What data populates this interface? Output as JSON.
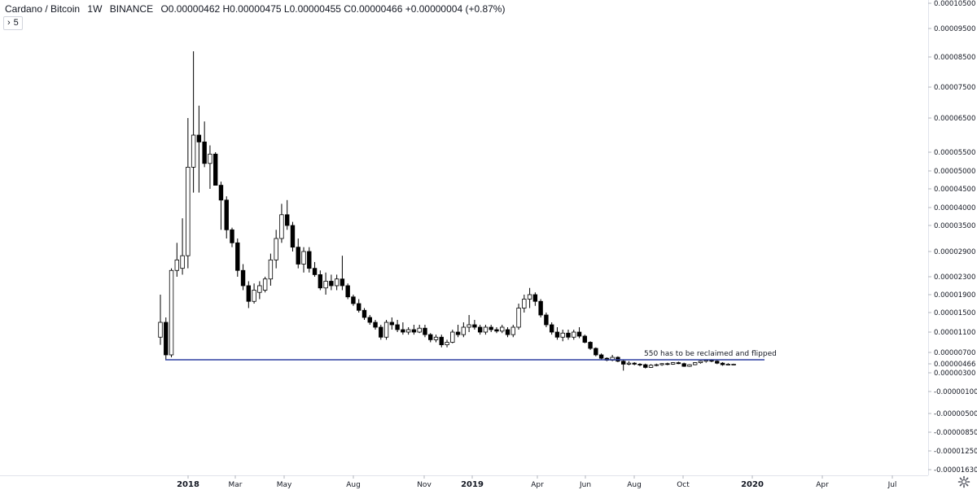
{
  "header": {
    "symbol": "Cardano / Bitcoin",
    "interval": "1W",
    "exchange": "BINANCE",
    "ohlc": "O0.00000462 H0.00000475 L0.00000455 C0.00000466 +0.00000004 (+0.87%)"
  },
  "collapse_button": {
    "icon": "chevron-right-icon",
    "label": "5"
  },
  "settings_icon": "gear-icon",
  "chart_data": {
    "type": "candlestick",
    "title": "",
    "price_scale": {
      "position": "right",
      "tick_labels": [
        "0.00010500",
        "0.00009500",
        "0.00008500",
        "0.00007500",
        "0.00006500",
        "0.00005500",
        "0.00005000",
        "0.00004500",
        "0.00004000",
        "0.00003500",
        "0.00002900",
        "0.00002300",
        "0.00001900",
        "0.00001500",
        "0.00001100",
        "0.00000700",
        "0.00000466",
        "0.00000300",
        "-0.00000100",
        "-0.00000500",
        "-0.00000850",
        "-0.00001250",
        "-0.00001630"
      ],
      "last_price": "0.00000466"
    },
    "time_scale": {
      "tick_labels": [
        "2018",
        "Mar",
        "May",
        "Aug",
        "Nov",
        "2019",
        "Apr",
        "Jun",
        "Aug",
        "Oct",
        "2020",
        "Apr",
        "Jul"
      ],
      "bold_labels": [
        "2018",
        "2019",
        "2020"
      ]
    },
    "annotation": {
      "text": "550 has to be reclaimed and flipped",
      "line_value": 5.5e-06,
      "color": "#2d3fa0"
    },
    "colors": {
      "up": "#ffffff",
      "down": "#000000",
      "wick": "#000000"
    },
    "candles": [
      {
        "o": 1e-05,
        "h": 1.9e-05,
        "l": 8.5e-06,
        "c": 1.3e-05
      },
      {
        "o": 1.3e-05,
        "h": 1.4e-05,
        "l": 5.5e-06,
        "c": 6.5e-06
      },
      {
        "o": 6.5e-06,
        "h": 2.5e-05,
        "l": 6e-06,
        "c": 2.45e-05
      },
      {
        "o": 2.45e-05,
        "h": 3.1e-05,
        "l": 2.3e-05,
        "c": 2.7e-05
      },
      {
        "o": 2.5e-05,
        "h": 3.7e-05,
        "l": 2.35e-05,
        "c": 2.8e-05
      },
      {
        "o": 2.8e-05,
        "h": 6.5e-05,
        "l": 2.5e-05,
        "c": 5.1e-05
      },
      {
        "o": 5.1e-05,
        "h": 8.7e-05,
        "l": 4.4e-05,
        "c": 6e-05
      },
      {
        "o": 6e-05,
        "h": 6.9e-05,
        "l": 4.4e-05,
        "c": 5.8e-05
      },
      {
        "o": 5.8e-05,
        "h": 6.4e-05,
        "l": 5.1e-05,
        "c": 5.2e-05
      },
      {
        "o": 5.2e-05,
        "h": 5.7e-05,
        "l": 4.5e-05,
        "c": 5.45e-05
      },
      {
        "o": 5.45e-05,
        "h": 5.5e-05,
        "l": 4.6e-05,
        "c": 4.6e-05
      },
      {
        "o": 4.6e-05,
        "h": 4.7e-05,
        "l": 3.4e-05,
        "c": 4.2e-05
      },
      {
        "o": 4.2e-05,
        "h": 4.3e-05,
        "l": 3.2e-05,
        "c": 3.4e-05
      },
      {
        "o": 3.4e-05,
        "h": 3.45e-05,
        "l": 3e-05,
        "c": 3.1e-05
      },
      {
        "o": 3.1e-05,
        "h": 3.2e-05,
        "l": 2.3e-05,
        "c": 2.45e-05
      },
      {
        "o": 2.45e-05,
        "h": 2.6e-05,
        "l": 2e-05,
        "c": 2.1e-05
      },
      {
        "o": 2.1e-05,
        "h": 2.2e-05,
        "l": 1.6e-05,
        "c": 1.75e-05
      },
      {
        "o": 1.75e-05,
        "h": 2.15e-05,
        "l": 1.7e-05,
        "c": 2e-05
      },
      {
        "o": 1.95e-05,
        "h": 2.2e-05,
        "l": 1.8e-05,
        "c": 2.1e-05
      },
      {
        "o": 2e-05,
        "h": 2.3e-05,
        "l": 1.95e-05,
        "c": 2.25e-05
      },
      {
        "o": 2.25e-05,
        "h": 2.85e-05,
        "l": 2.1e-05,
        "c": 2.7e-05
      },
      {
        "o": 2.7e-05,
        "h": 3.4e-05,
        "l": 2.5e-05,
        "c": 3.2e-05
      },
      {
        "o": 3.2e-05,
        "h": 4.1e-05,
        "l": 3.1e-05,
        "c": 3.8e-05
      },
      {
        "o": 3.8e-05,
        "h": 4.2e-05,
        "l": 3.4e-05,
        "c": 3.5e-05
      },
      {
        "o": 3.5e-05,
        "h": 3.6e-05,
        "l": 2.9e-05,
        "c": 3e-05
      },
      {
        "o": 3e-05,
        "h": 3.2e-05,
        "l": 2.5e-05,
        "c": 2.6e-05
      },
      {
        "o": 2.6e-05,
        "h": 3e-05,
        "l": 2.4e-05,
        "c": 2.9e-05
      },
      {
        "o": 2.9e-05,
        "h": 3e-05,
        "l": 2.4e-05,
        "c": 2.5e-05
      },
      {
        "o": 2.5e-05,
        "h": 2.65e-05,
        "l": 2.3e-05,
        "c": 2.35e-05
      },
      {
        "o": 2.35e-05,
        "h": 2.45e-05,
        "l": 2e-05,
        "c": 2.05e-05
      },
      {
        "o": 2.05e-05,
        "h": 2.4e-05,
        "l": 1.9e-05,
        "c": 2.2e-05
      },
      {
        "o": 2.2e-05,
        "h": 2.35e-05,
        "l": 2e-05,
        "c": 2.1e-05
      },
      {
        "o": 2.1e-05,
        "h": 2.35e-05,
        "l": 2e-05,
        "c": 2.25e-05
      },
      {
        "o": 2.25e-05,
        "h": 2.8e-05,
        "l": 2e-05,
        "c": 2.1e-05
      },
      {
        "o": 2.1e-05,
        "h": 2.15e-05,
        "l": 1.8e-05,
        "c": 1.85e-05
      },
      {
        "o": 1.85e-05,
        "h": 1.9e-05,
        "l": 1.65e-05,
        "c": 1.7e-05
      },
      {
        "o": 1.7e-05,
        "h": 1.8e-05,
        "l": 1.5e-05,
        "c": 1.55e-05
      },
      {
        "o": 1.55e-05,
        "h": 1.6e-05,
        "l": 1.35e-05,
        "c": 1.4e-05
      },
      {
        "o": 1.4e-05,
        "h": 1.45e-05,
        "l": 1.25e-05,
        "c": 1.3e-05
      },
      {
        "o": 1.3e-05,
        "h": 1.35e-05,
        "l": 1.15e-05,
        "c": 1.2e-05
      },
      {
        "o": 1.2e-05,
        "h": 1.25e-05,
        "l": 9.5e-06,
        "c": 1e-05
      },
      {
        "o": 1e-05,
        "h": 1.35e-05,
        "l": 9.5e-06,
        "c": 1.3e-05
      },
      {
        "o": 1.3e-05,
        "h": 1.4e-05,
        "l": 1.15e-05,
        "c": 1.25e-05
      },
      {
        "o": 1.25e-05,
        "h": 1.35e-05,
        "l": 1.1e-05,
        "c": 1.15e-05
      },
      {
        "o": 1.15e-05,
        "h": 1.3e-05,
        "l": 1.05e-05,
        "c": 1.1e-05
      },
      {
        "o": 1.1e-05,
        "h": 1.2e-05,
        "l": 1.05e-05,
        "c": 1.15e-05
      },
      {
        "o": 1.15e-05,
        "h": 1.25e-05,
        "l": 1.05e-05,
        "c": 1.1e-05
      },
      {
        "o": 1.1e-05,
        "h": 1.25e-05,
        "l": 1.08e-05,
        "c": 1.18e-05
      },
      {
        "o": 1.18e-05,
        "h": 1.25e-05,
        "l": 1e-05,
        "c": 1.05e-05
      },
      {
        "o": 1.05e-05,
        "h": 1.08e-05,
        "l": 9e-06,
        "c": 9.5e-06
      },
      {
        "o": 9.5e-06,
        "h": 1.05e-05,
        "l": 9e-06,
        "c": 1e-05
      },
      {
        "o": 1e-05,
        "h": 1.05e-05,
        "l": 8e-06,
        "c": 8.5e-06
      },
      {
        "o": 8.5e-06,
        "h": 9.5e-06,
        "l": 8e-06,
        "c": 9e-06
      },
      {
        "o": 9e-06,
        "h": 1.15e-05,
        "l": 8.8e-06,
        "c": 1.1e-05
      },
      {
        "o": 1.1e-05,
        "h": 1.25e-05,
        "l": 1e-05,
        "c": 1.05e-05
      },
      {
        "o": 1.05e-05,
        "h": 1.3e-05,
        "l": 1e-05,
        "c": 1.2e-05
      },
      {
        "o": 1.2e-05,
        "h": 1.45e-05,
        "l": 1.1e-05,
        "c": 1.25e-05
      },
      {
        "o": 1.25e-05,
        "h": 1.35e-05,
        "l": 1.15e-05,
        "c": 1.2e-05
      },
      {
        "o": 1.2e-05,
        "h": 1.25e-05,
        "l": 1.05e-05,
        "c": 1.1e-05
      },
      {
        "o": 1.1e-05,
        "h": 1.25e-05,
        "l": 1.05e-05,
        "c": 1.2e-05
      },
      {
        "o": 1.2e-05,
        "h": 1.25e-05,
        "l": 1.1e-05,
        "c": 1.15e-05
      },
      {
        "o": 1.15e-05,
        "h": 1.2e-05,
        "l": 1.08e-05,
        "c": 1.12e-05
      },
      {
        "o": 1.12e-05,
        "h": 1.25e-05,
        "l": 1.08e-05,
        "c": 1.2e-05
      },
      {
        "o": 1.15e-05,
        "h": 1.2e-05,
        "l": 1e-05,
        "c": 1.05e-05
      },
      {
        "o": 1.05e-05,
        "h": 1.25e-05,
        "l": 1e-05,
        "c": 1.2e-05
      },
      {
        "o": 1.2e-05,
        "h": 1.7e-05,
        "l": 1.15e-05,
        "c": 1.6e-05
      },
      {
        "o": 1.6e-05,
        "h": 1.9e-05,
        "l": 1.5e-05,
        "c": 1.8e-05
      },
      {
        "o": 1.8e-05,
        "h": 2.05e-05,
        "l": 1.6e-05,
        "c": 1.9e-05
      },
      {
        "o": 1.9e-05,
        "h": 1.95e-05,
        "l": 1.65e-05,
        "c": 1.75e-05
      },
      {
        "o": 1.75e-05,
        "h": 1.8e-05,
        "l": 1.4e-05,
        "c": 1.45e-05
      },
      {
        "o": 1.45e-05,
        "h": 1.5e-05,
        "l": 1.2e-05,
        "c": 1.25e-05
      },
      {
        "o": 1.25e-05,
        "h": 1.3e-05,
        "l": 1.05e-05,
        "c": 1.1e-05
      },
      {
        "o": 1.1e-05,
        "h": 1.2e-05,
        "l": 9.5e-06,
        "c": 1e-05
      },
      {
        "o": 1e-05,
        "h": 1.15e-05,
        "l": 9.2e-06,
        "c": 1.08e-05
      },
      {
        "o": 1.08e-05,
        "h": 1.15e-05,
        "l": 9.5e-06,
        "c": 1e-05
      },
      {
        "o": 1e-05,
        "h": 1.15e-05,
        "l": 9.5e-06,
        "c": 1.1e-05
      },
      {
        "o": 1.1e-05,
        "h": 1.2e-05,
        "l": 9.8e-06,
        "c": 1.02e-05
      },
      {
        "o": 1.02e-05,
        "h": 1.05e-05,
        "l": 8.8e-06,
        "c": 9e-06
      },
      {
        "o": 9e-06,
        "h": 9.2e-06,
        "l": 7.5e-06,
        "c": 7.8e-06
      },
      {
        "o": 7.8e-06,
        "h": 8e-06,
        "l": 6.2e-06,
        "c": 6.5e-06
      },
      {
        "o": 6.5e-06,
        "h": 6.8e-06,
        "l": 5.5e-06,
        "c": 5.8e-06
      },
      {
        "o": 5.8e-06,
        "h": 6e-06,
        "l": 5.2e-06,
        "c": 5.4e-06
      },
      {
        "o": 5.4e-06,
        "h": 6.5e-06,
        "l": 5.2e-06,
        "c": 6e-06
      },
      {
        "o": 6e-06,
        "h": 6.2e-06,
        "l": 5e-06,
        "c": 5.2e-06
      },
      {
        "o": 5.2e-06,
        "h": 5.4e-06,
        "l": 3.4e-06,
        "c": 4.6e-06
      },
      {
        "o": 4.6e-06,
        "h": 5.2e-06,
        "l": 4.4e-06,
        "c": 4.8e-06
      },
      {
        "o": 4.8e-06,
        "h": 5e-06,
        "l": 4.4e-06,
        "c": 4.6e-06
      },
      {
        "o": 4.6e-06,
        "h": 4.8e-06,
        "l": 4.2e-06,
        "c": 4.5e-06
      },
      {
        "o": 4.5e-06,
        "h": 4.7e-06,
        "l": 3.8e-06,
        "c": 4e-06
      },
      {
        "o": 4e-06,
        "h": 4.6e-06,
        "l": 3.9e-06,
        "c": 4.4e-06
      },
      {
        "o": 4.4e-06,
        "h": 4.7e-06,
        "l": 4.2e-06,
        "c": 4.5e-06
      },
      {
        "o": 4.5e-06,
        "h": 4.8e-06,
        "l": 4.3e-06,
        "c": 4.7e-06
      },
      {
        "o": 4.7e-06,
        "h": 4.9e-06,
        "l": 4.4e-06,
        "c": 4.6e-06
      },
      {
        "o": 4.6e-06,
        "h": 5e-06,
        "l": 4.5e-06,
        "c": 4.9e-06
      },
      {
        "o": 4.9e-06,
        "h": 5.1e-06,
        "l": 4.6e-06,
        "c": 4.7e-06
      },
      {
        "o": 4.7e-06,
        "h": 4.9e-06,
        "l": 4.1e-06,
        "c": 4.2e-06
      },
      {
        "o": 4.2e-06,
        "h": 4.6e-06,
        "l": 4.1e-06,
        "c": 4.5e-06
      },
      {
        "o": 4.5e-06,
        "h": 5e-06,
        "l": 4.4e-06,
        "c": 4.9e-06
      },
      {
        "o": 4.9e-06,
        "h": 5.3e-06,
        "l": 4.7e-06,
        "c": 5.2e-06
      },
      {
        "o": 5.2e-06,
        "h": 5.5e-06,
        "l": 4.9e-06,
        "c": 5.4e-06
      },
      {
        "o": 5.4e-06,
        "h": 5.6e-06,
        "l": 5e-06,
        "c": 5.2e-06
      },
      {
        "o": 5.2e-06,
        "h": 5.4e-06,
        "l": 4.6e-06,
        "c": 4.8e-06
      },
      {
        "o": 4.8e-06,
        "h": 5e-06,
        "l": 4.3e-06,
        "c": 4.5e-06
      },
      {
        "o": 4.5e-06,
        "h": 4.8e-06,
        "l": 4.4e-06,
        "c": 4.6e-06
      },
      {
        "o": 4.6e-06,
        "h": 4.7e-06,
        "l": 4.5e-06,
        "c": 4.6e-06
      }
    ]
  }
}
